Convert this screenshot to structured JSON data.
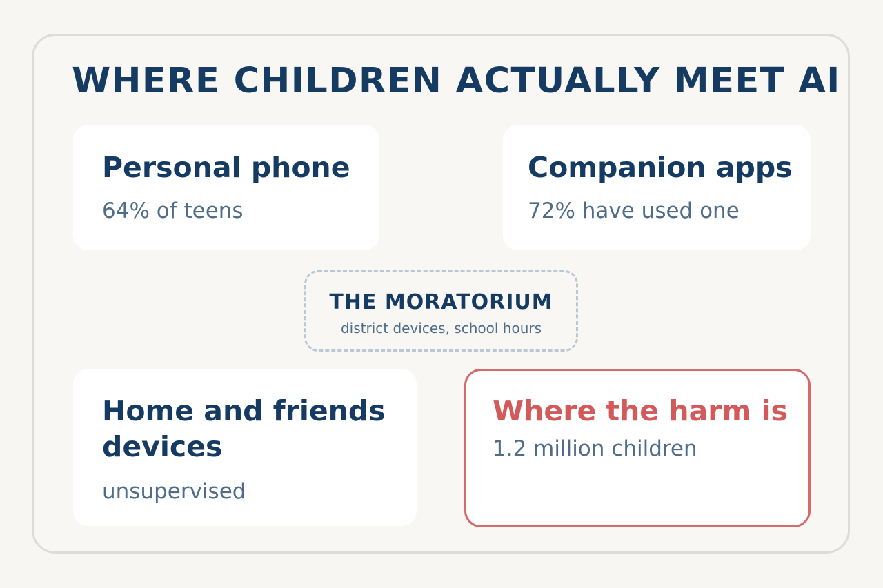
{
  "title": "WHERE CHILDREN ACTUALLY MEET AI",
  "cards": {
    "personal_phone": {
      "title": "Personal phone",
      "subtitle": "64% of teens"
    },
    "companion_apps": {
      "title": "Companion apps",
      "subtitle": "72% have used one"
    },
    "home_friends": {
      "title": "Home and friends devices",
      "subtitle": "unsupervised"
    },
    "harm": {
      "title": "Where the harm is",
      "subtitle": "1.2 million children"
    }
  },
  "moratorium": {
    "title": "THE MORATORIUM",
    "subtitle": "district devices, school hours"
  },
  "colors": {
    "title": "#163b63",
    "subtitle": "#4f6d88",
    "harm": "#d25a5a",
    "harm_border": "#d46a6a",
    "moratorium_border": "#b9c7d6"
  }
}
